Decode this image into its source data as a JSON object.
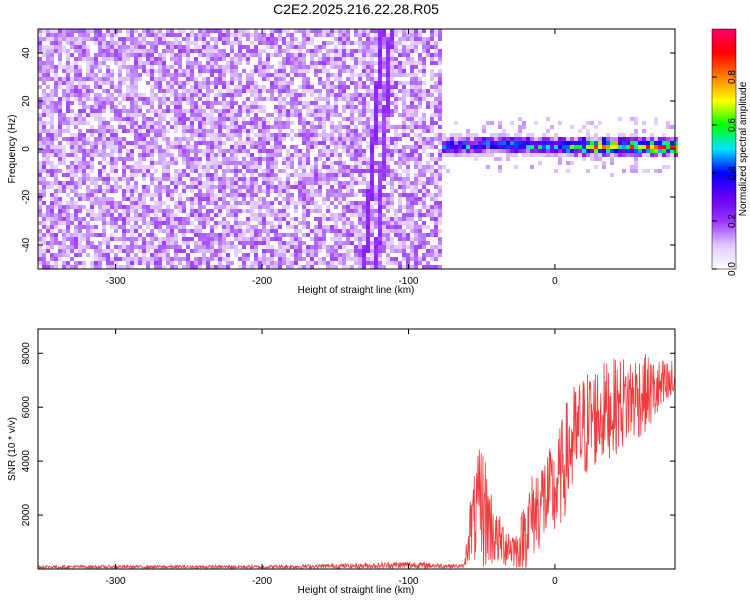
{
  "title": "C2E2.2025.216.22.28.R05",
  "chart_data": [
    {
      "type": "heatmap",
      "xlabel": "Height of straight line (km)",
      "ylabel": "Frequency (Hz)",
      "xlim": [
        -353,
        82
      ],
      "ylim": [
        -50,
        50
      ],
      "xticks": [
        -300,
        -200,
        -100,
        0
      ],
      "yticks": [
        -40,
        -20,
        0,
        20,
        40
      ],
      "colorbar": {
        "label": "Normalized spectral amplitude",
        "range": [
          0.0,
          1.0
        ],
        "ticks": [
          0.0,
          0.2,
          0.4,
          0.6,
          0.8
        ],
        "colors": [
          "#ffffff",
          "#e0c8ff",
          "#9933ff",
          "#6600ee",
          "#0000ff",
          "#00e5ff",
          "#00ff00",
          "#ffff00",
          "#ff8000",
          "#ff0000",
          "#ff0066"
        ]
      },
      "regions": {
        "noise_x_range": [
          -353,
          -77
        ],
        "noise_level": 0.12,
        "features": [
          {
            "name": "tilted-line-1",
            "x_at_ymin": -130,
            "x_at_ymax": -118,
            "level": 0.2
          },
          {
            "name": "tilted-line-2",
            "x_at_ymin": -122,
            "x_at_ymax": -112,
            "level": 0.18
          }
        ],
        "signal_x_range": [
          -77,
          82
        ],
        "signal_freq_center": [
          {
            "x": -75,
            "y": 1
          },
          {
            "x": -40,
            "y": 2
          },
          {
            "x": 0,
            "y": 1
          },
          {
            "x": 40,
            "y": 1
          },
          {
            "x": 82,
            "y": 1
          }
        ],
        "signal_width": 4.5,
        "signal_peak": [
          {
            "x": -75,
            "v": 0.45
          },
          {
            "x": 0,
            "v": 0.55
          },
          {
            "x": 30,
            "v": 0.8
          },
          {
            "x": 82,
            "v": 0.85
          }
        ]
      }
    },
    {
      "type": "line",
      "xlabel": "Height of straight line (km)",
      "ylabel": "SNR (10 * v/v)",
      "xlim": [
        -353,
        82
      ],
      "ylim": [
        0,
        8900
      ],
      "xticks": [
        -300,
        -200,
        -100,
        0
      ],
      "yticks": [
        2000,
        4000,
        6000,
        8000
      ],
      "color": "#ef3b3b",
      "envelope": [
        {
          "x": -353,
          "base": 80,
          "amp": 60
        },
        {
          "x": -200,
          "base": 80,
          "amp": 60
        },
        {
          "x": -130,
          "base": 120,
          "amp": 100
        },
        {
          "x": -100,
          "base": 150,
          "amp": 150
        },
        {
          "x": -62,
          "base": 100,
          "amp": 60
        },
        {
          "x": -58,
          "base": 1500,
          "amp": 1200
        },
        {
          "x": -50,
          "base": 2400,
          "amp": 2500
        },
        {
          "x": -40,
          "base": 1100,
          "amp": 1000
        },
        {
          "x": -25,
          "base": 700,
          "amp": 700
        },
        {
          "x": -20,
          "base": 1500,
          "amp": 1500
        },
        {
          "x": -10,
          "base": 2500,
          "amp": 1800
        },
        {
          "x": 0,
          "base": 2800,
          "amp": 1800
        },
        {
          "x": 10,
          "base": 4500,
          "amp": 2200
        },
        {
          "x": 25,
          "base": 5600,
          "amp": 2000
        },
        {
          "x": 40,
          "base": 6000,
          "amp": 1800
        },
        {
          "x": 55,
          "base": 6400,
          "amp": 1700
        },
        {
          "x": 70,
          "base": 6600,
          "amp": 1200
        },
        {
          "x": 82,
          "base": 6900,
          "amp": 900
        }
      ]
    }
  ]
}
